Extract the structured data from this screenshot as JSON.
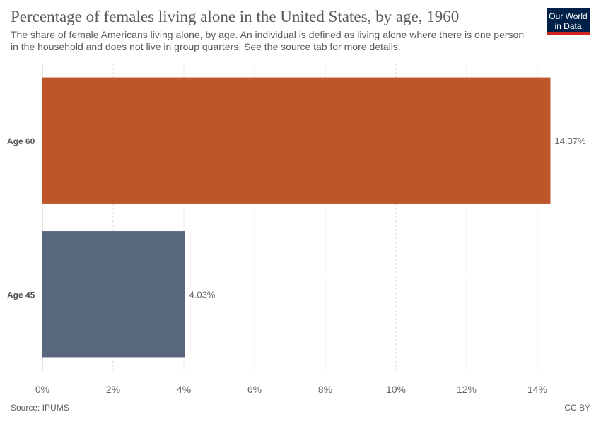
{
  "header": {
    "title": "Percentage of females living alone in the United States, by age, 1960",
    "subtitle": "The share of female Americans living alone, by age. An individual is defined as living alone where there is one person in the household and does not live in group quarters. See the source tab for more details.",
    "logo_line1": "Our World",
    "logo_line2": "in Data"
  },
  "footer": {
    "source": "Source: IPUMS",
    "license": "CC BY"
  },
  "colors": {
    "text": "#5b5b5b",
    "grid": "#dddddd",
    "logo_background": "#002147",
    "logo_accent": "#ce261e"
  },
  "chart_data": {
    "type": "bar",
    "orientation": "horizontal",
    "categories": [
      "Age 60",
      "Age 45"
    ],
    "values": [
      14.37,
      4.03
    ],
    "value_labels": [
      "14.37%",
      "4.03%"
    ],
    "colors": [
      "#be562c",
      "#58677c"
    ],
    "xlim": [
      0,
      14
    ],
    "xticks": [
      0,
      2,
      4,
      6,
      8,
      10,
      12,
      14
    ],
    "xtick_labels": [
      "0%",
      "2%",
      "4%",
      "6%",
      "8%",
      "10%",
      "12%",
      "14%"
    ],
    "grid": true,
    "legend": "none"
  }
}
